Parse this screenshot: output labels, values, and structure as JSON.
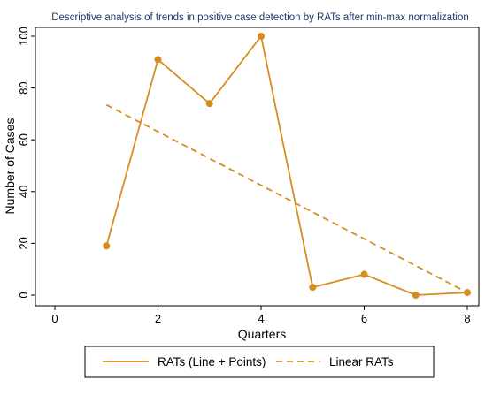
{
  "chart_data": {
    "type": "line",
    "title": "Descriptive analysis of trends in positive case detection by RATs after min-max normalization",
    "xlabel": "Quarters",
    "ylabel": "Number of Cases",
    "xlim": [
      0,
      8
    ],
    "ylim": [
      0,
      100
    ],
    "xticks": [
      0,
      2,
      4,
      6,
      8
    ],
    "yticks": [
      0,
      20,
      40,
      60,
      80,
      100
    ],
    "grid": false,
    "legend_position": "bottom",
    "series": [
      {
        "name": "RATs (Line + Points)",
        "style": "line+points",
        "color": "#d88c1e",
        "x": [
          1,
          2,
          3,
          4,
          5,
          6,
          7,
          8
        ],
        "y": [
          19,
          91,
          74,
          100,
          3,
          8,
          0,
          1
        ]
      },
      {
        "name": "Linear RATs",
        "style": "dashed",
        "color": "#d88c1e",
        "x": [
          1,
          8
        ],
        "y": [
          73.5,
          1
        ]
      }
    ]
  }
}
